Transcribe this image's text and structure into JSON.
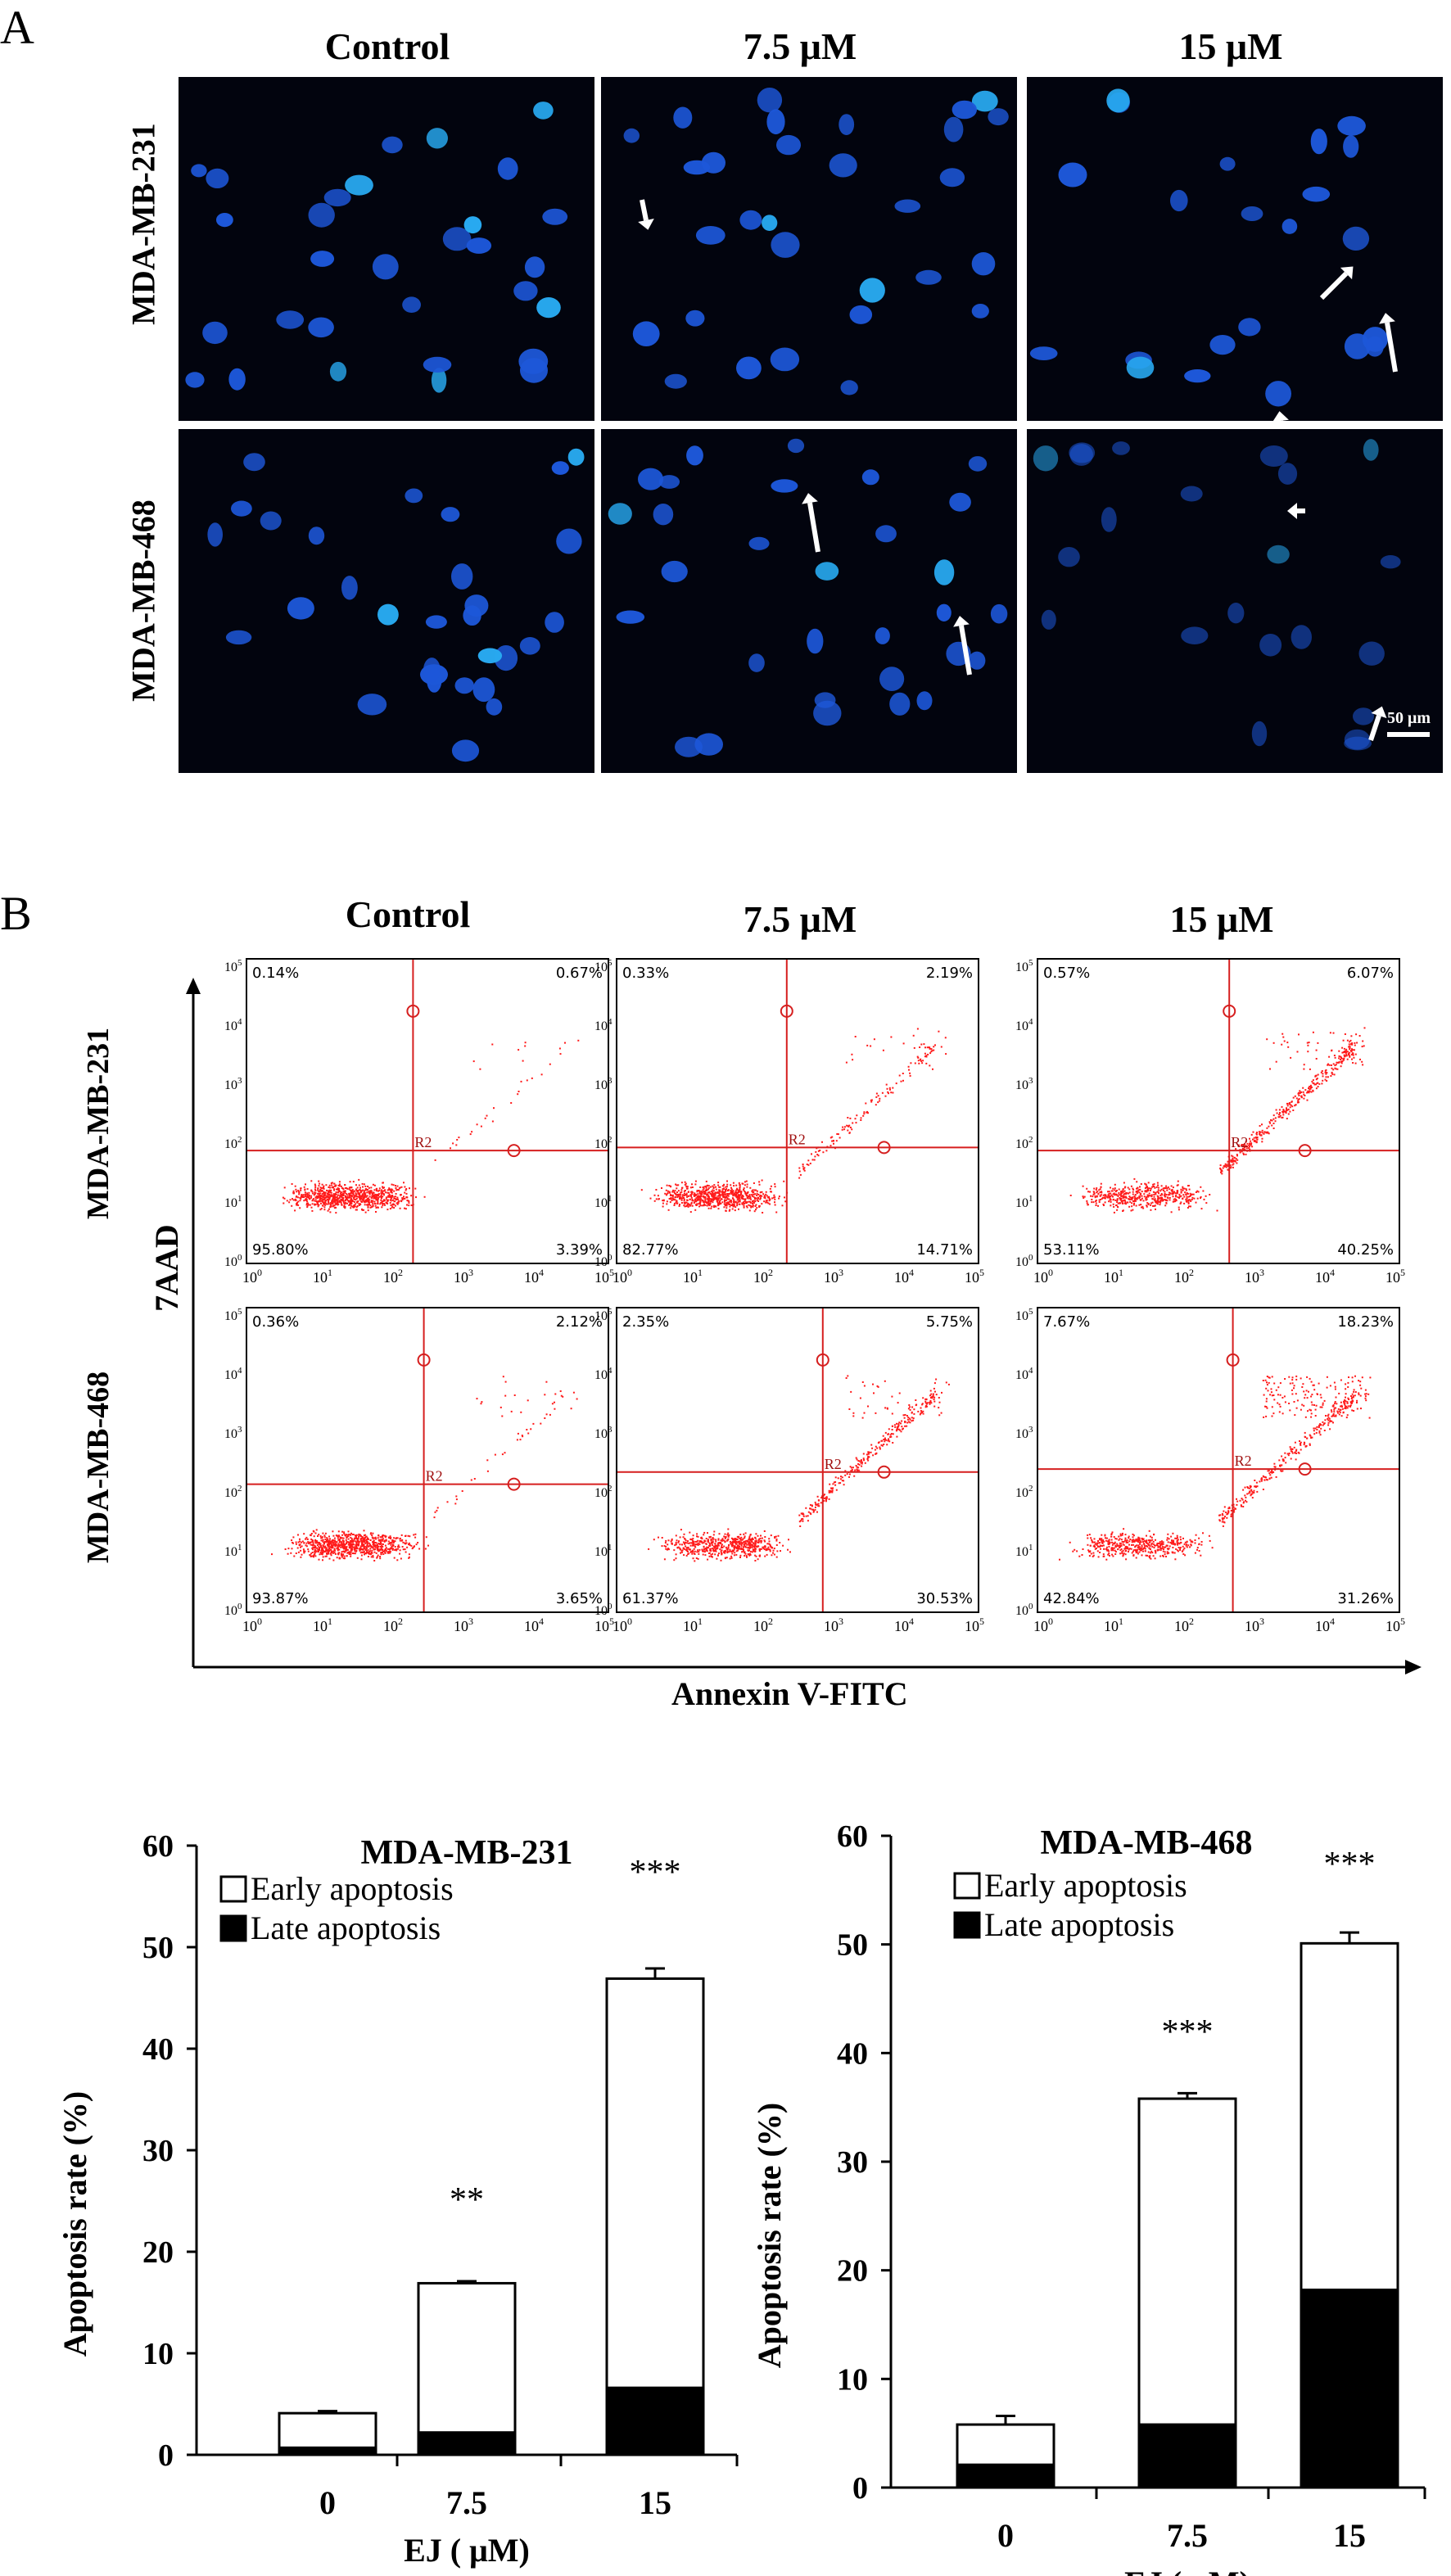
{
  "panel_a": {
    "letter": "A",
    "columns": [
      "Control",
      "7.5  μM",
      "15 μM"
    ],
    "rows": [
      "MDA-MB-231",
      "MDA-MB-468"
    ],
    "scale_bar": "50 μm"
  },
  "panel_b": {
    "letter": "B",
    "columns": [
      "Control",
      "7.5 μM",
      "15 μM"
    ],
    "rows": [
      "MDA-MB-231",
      "MDA-MB-468"
    ],
    "y_axis": "7AAD",
    "x_axis": "Annexin V-FITC",
    "gate_label": "R2",
    "tick_base": "10",
    "tick_exponents": [
      "0",
      "1",
      "2",
      "3",
      "4",
      "5"
    ],
    "quadrants": [
      [
        {
          "ul": "0.14%",
          "ur": "0.67%",
          "ll": "95.80%",
          "lr": "3.39%"
        },
        {
          "ul": "0.33%",
          "ur": "2.19%",
          "ll": "82.77%",
          "lr": "14.71%"
        },
        {
          "ul": "0.57%",
          "ur": "6.07%",
          "ll": "53.11%",
          "lr": "40.25%"
        }
      ],
      [
        {
          "ul": "0.36%",
          "ur": "2.12%",
          "ll": "93.87%",
          "lr": "3.65%"
        },
        {
          "ul": "2.35%",
          "ur": "5.75%",
          "ll": "61.37%",
          "lr": "30.53%"
        },
        {
          "ul": "7.67%",
          "ur": "18.23%",
          "ll": "42.84%",
          "lr": "31.26%"
        }
      ]
    ]
  },
  "chart_data": [
    {
      "type": "bar",
      "stacked": true,
      "title": "MDA-MB-231",
      "xlabel": "EJ ( μM)",
      "ylabel": "Apoptosis rate (%)",
      "ylim": [
        0,
        60
      ],
      "yticks": [
        "0",
        "10",
        "20",
        "30",
        "40",
        "50",
        "60"
      ],
      "categories": [
        "0",
        "7.5",
        "15"
      ],
      "series": [
        {
          "name": "Late apoptosis",
          "values": [
            0.7,
            2.2,
            6.6
          ],
          "errors": [
            0.1,
            1.0,
            1.6
          ],
          "color": "#000000"
        },
        {
          "name": "Early apoptosis",
          "values": [
            3.4,
            14.7,
            40.3
          ],
          "errors": [
            0.2,
            0.2,
            1.0
          ],
          "color": "#ffffff"
        }
      ],
      "significance": [
        "",
        "**",
        "***"
      ],
      "legend_position": "top-left"
    },
    {
      "type": "bar",
      "stacked": true,
      "title": "MDA-MB-468",
      "xlabel": "EJ ( μM)",
      "ylabel": "Apoptosis rate (%)",
      "ylim": [
        0,
        60
      ],
      "yticks": [
        "0",
        "10",
        "20",
        "30",
        "40",
        "50",
        "60"
      ],
      "categories": [
        "0",
        "7.5",
        "15"
      ],
      "series": [
        {
          "name": "Late apoptosis",
          "values": [
            2.1,
            5.8,
            18.2
          ],
          "errors": [
            0.3,
            0.4,
            1.0
          ],
          "color": "#000000"
        },
        {
          "name": "Early apoptosis",
          "values": [
            3.7,
            30.0,
            31.9
          ],
          "errors": [
            0.8,
            0.5,
            1.0
          ],
          "color": "#ffffff"
        }
      ],
      "significance": [
        "",
        "***",
        "***"
      ],
      "legend_position": "top-left"
    }
  ]
}
